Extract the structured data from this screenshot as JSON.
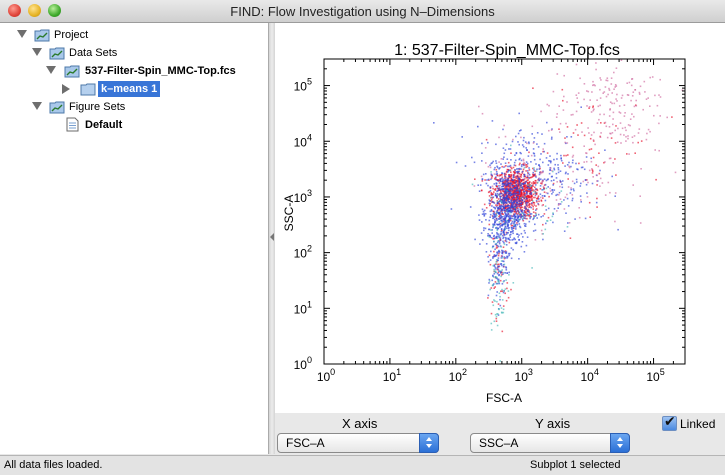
{
  "window": {
    "title": "FIND: Flow Investigation using N–Dimensions"
  },
  "tree": {
    "project": "Project",
    "data_sets": "Data Sets",
    "file": "537-Filter-Spin_MMC-Top.fcs",
    "kmeans": "k–means 1",
    "figure_sets": "Figure Sets",
    "default": "Default"
  },
  "plot": {
    "title": "1: 537-Filter-Spin_MMC-Top.fcs"
  },
  "chart_data": {
    "type": "scatter",
    "title": "1: 537-Filter-Spin_MMC-Top.fcs",
    "xlabel": "FSC-A",
    "ylabel": "SSC-A",
    "xscale": "log",
    "yscale": "log",
    "xlim": [
      1,
      300000
    ],
    "ylim": [
      1,
      300000
    ],
    "xticks": [
      "10",
      "10",
      "10",
      "10",
      "10",
      "10"
    ],
    "xtick_exponents": [
      "0",
      "1",
      "2",
      "3",
      "4",
      "5"
    ],
    "yticks": [
      "10",
      "10",
      "10",
      "10",
      "10",
      "10"
    ],
    "ytick_exponents": [
      "0",
      "1",
      "2",
      "3",
      "4",
      "5"
    ],
    "grid": false,
    "legend": "none",
    "series": [
      {
        "color": "#e8102a",
        "clusters": [
          {
            "cx": 800,
            "cy": 1200,
            "sx": 0.18,
            "sy": 0.22,
            "n": 900
          },
          {
            "cx": 450,
            "cy": 60,
            "sx": 0.08,
            "sy": 0.45,
            "n": 60
          },
          {
            "cx": 9000,
            "cy": 7000,
            "sx": 0.5,
            "sy": 0.5,
            "n": 60
          }
        ]
      },
      {
        "color": "#3044d8",
        "clusters": [
          {
            "cx": 600,
            "cy": 600,
            "sx": 0.15,
            "sy": 0.35,
            "n": 650
          },
          {
            "cx": 1500,
            "cy": 2500,
            "sx": 0.45,
            "sy": 0.45,
            "n": 350
          },
          {
            "cx": 420,
            "cy": 80,
            "sx": 0.07,
            "sy": 0.4,
            "n": 120
          }
        ]
      },
      {
        "color": "#d06aa0",
        "clusters": [
          {
            "cx": 20000,
            "cy": 40000,
            "sx": 0.45,
            "sy": 0.45,
            "n": 180
          },
          {
            "cx": 3000,
            "cy": 3000,
            "sx": 0.55,
            "sy": 0.55,
            "n": 120
          }
        ]
      },
      {
        "color": "#48b8b8",
        "clusters": [
          {
            "cx": 450,
            "cy": 40,
            "sx": 0.08,
            "sy": 0.5,
            "n": 70
          },
          {
            "cx": 900,
            "cy": 900,
            "sx": 0.3,
            "sy": 0.4,
            "n": 60
          }
        ]
      }
    ]
  },
  "controls": {
    "x_axis_label": "X axis",
    "x_axis_value": "FSC–A",
    "y_axis_label": "Y axis",
    "y_axis_value": "SSC–A",
    "linked_label": "Linked",
    "linked_checked": true
  },
  "status": {
    "left": "All data files loaded.",
    "right": "Subplot 1 selected"
  },
  "icons": [
    "folder-graph-icon",
    "folder-icon",
    "document-icon",
    "disclosure-triangle-icon",
    "checkmark-icon"
  ]
}
